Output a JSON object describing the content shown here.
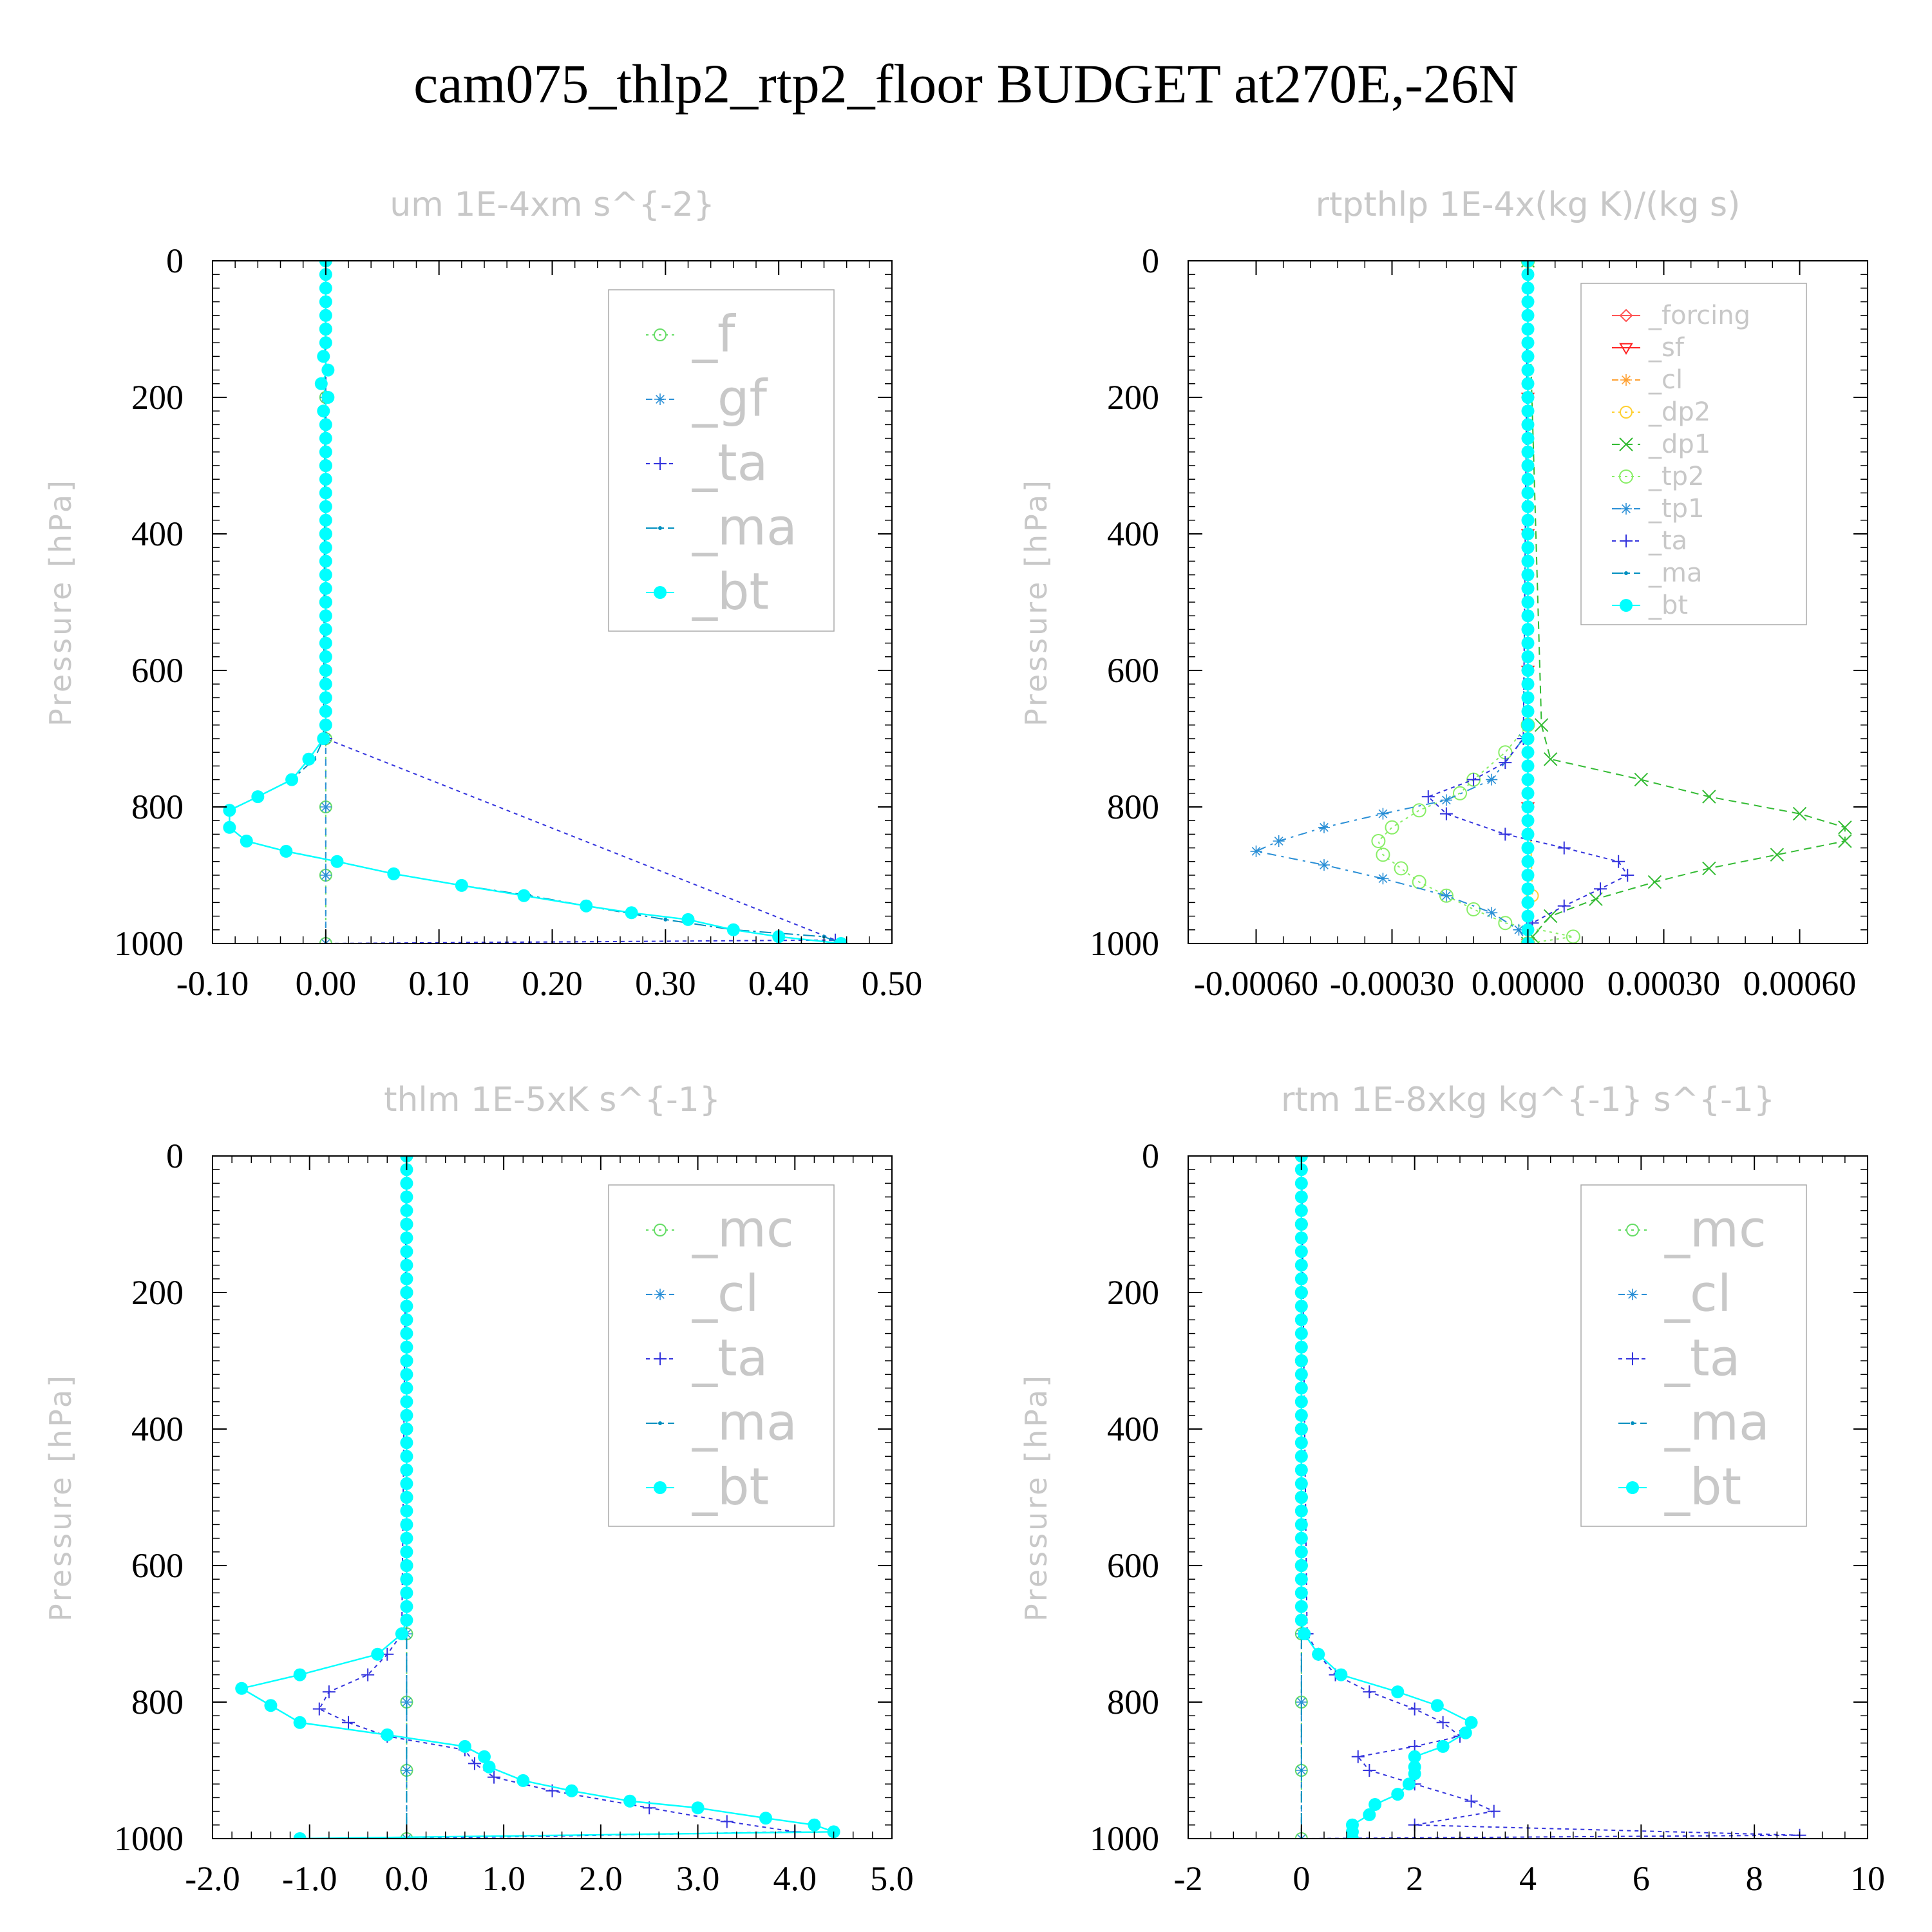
{
  "figure": {
    "title": "cam075_thlp2_rtp2_floor  BUDGET at270E,-26N"
  },
  "colors": {
    "_f": "#66dd66",
    "_gf": "#2a8fd6",
    "_ta": "#3333dd",
    "_ma": "#008fbf",
    "_bt": "#00ffff",
    "_mc": "#66dd66",
    "_cl": "#2a8fd6",
    "_forcing": "#ff5555",
    "_sf": "#ff2222",
    "_cl_r": "#ffa030",
    "_dp2": "#ffd030",
    "_dp1": "#33bb33",
    "_tp2": "#88ee66",
    "_tp1": "#2a8fd6"
  },
  "chart_data": [
    {
      "type": "line",
      "title": "um  1E-4xm s^{-2}",
      "ylabel": "Pressure [hPa]",
      "xlim": [
        -0.1,
        0.5
      ],
      "ylim": [
        1000,
        0
      ],
      "xticks": [
        "-0.10",
        "0.00",
        "0.10",
        "0.20",
        "0.30",
        "0.40",
        "0.50"
      ],
      "yticks": [
        "0",
        "200",
        "400",
        "600",
        "800",
        "1000"
      ],
      "legend_position": "top-right",
      "legend": [
        "_f",
        "_gf",
        "_ta",
        "_ma",
        "_bt"
      ],
      "series": [
        {
          "name": "_f",
          "pressure": [
            0,
            100,
            200,
            300,
            400,
            500,
            600,
            700,
            800,
            900,
            1000
          ],
          "values": [
            0,
            0,
            0,
            0,
            0,
            0,
            0,
            0,
            0,
            0,
            0
          ]
        },
        {
          "name": "_gf",
          "pressure": [
            0,
            100,
            200,
            300,
            400,
            500,
            600,
            700,
            800,
            900,
            1000
          ],
          "values": [
            0,
            0,
            0,
            0,
            0,
            0,
            0,
            0,
            0,
            0,
            0
          ]
        },
        {
          "name": "_ta",
          "pressure": [
            0,
            700,
            995,
            1000
          ],
          "values": [
            0,
            0,
            0.45,
            0
          ]
        },
        {
          "name": "_ma",
          "pressure": [
            0,
            700,
            730,
            760,
            785,
            805,
            830,
            850,
            865,
            880,
            898,
            915,
            930,
            945,
            965,
            980,
            990,
            1000
          ],
          "values": [
            0,
            -0.002,
            -0.01,
            -0.03,
            -0.06,
            -0.085,
            -0.085,
            -0.07,
            -0.035,
            0.01,
            0.06,
            0.12,
            0.18,
            0.23,
            0.3,
            0.36,
            0.44,
            0.455
          ]
        },
        {
          "name": "_bt",
          "pressure": [
            0,
            20,
            40,
            60,
            80,
            100,
            120,
            140,
            160,
            180,
            200,
            220,
            240,
            260,
            280,
            300,
            320,
            340,
            360,
            380,
            400,
            420,
            440,
            460,
            480,
            500,
            520,
            540,
            560,
            580,
            600,
            620,
            640,
            660,
            680,
            700,
            730,
            760,
            785,
            805,
            830,
            850,
            865,
            880,
            898,
            915,
            930,
            945,
            955,
            965,
            980,
            990,
            1000
          ],
          "values": [
            0,
            0,
            0,
            0,
            0,
            0,
            0,
            -0.002,
            0.002,
            -0.004,
            0.002,
            -0.002,
            0,
            0,
            0,
            0,
            0,
            0,
            0,
            0,
            0,
            0,
            0,
            0,
            0,
            0,
            0,
            0,
            0,
            0,
            0,
            0,
            0,
            0,
            0,
            -0.002,
            -0.015,
            -0.03,
            -0.06,
            -0.085,
            -0.085,
            -0.07,
            -0.035,
            0.01,
            0.06,
            0.12,
            0.175,
            0.23,
            0.27,
            0.32,
            0.36,
            0.4,
            0.455
          ]
        }
      ]
    },
    {
      "type": "line",
      "title": "rtpthlp  1E-4x(kg K)/(kg s)",
      "ylabel": "Pressure [hPa]",
      "xlim": [
        -0.00075,
        0.00075
      ],
      "ylim": [
        1000,
        0
      ],
      "xticks": [
        "-0.00060",
        "-0.00030",
        "0.00000",
        "0.00030",
        "0.00060"
      ],
      "yticks": [
        "0",
        "200",
        "400",
        "600",
        "800",
        "1000"
      ],
      "legend_position": "top-right",
      "legend": [
        "_forcing",
        "_sf",
        "_cl",
        "_dp2",
        "_dp1",
        "_tp2",
        "_tp1",
        "_ta",
        "_ma",
        "_bt"
      ],
      "series": [
        {
          "name": "_forcing",
          "pressure": [
            0,
            200,
            400,
            600,
            800,
            1000
          ],
          "values": [
            0,
            0,
            0,
            0,
            0,
            0
          ]
        },
        {
          "name": "_sf",
          "pressure": [
            0,
            200,
            400,
            600,
            800,
            1000
          ],
          "values": [
            0,
            0,
            0,
            0,
            0,
            0
          ]
        },
        {
          "name": "_cl",
          "pressure": [
            0,
            200,
            400,
            600,
            800,
            1000
          ],
          "values": [
            0,
            0,
            0,
            0,
            0,
            0
          ]
        },
        {
          "name": "_dp2",
          "pressure": [
            0,
            700,
            930,
            1000
          ],
          "values": [
            0,
            0,
            1e-05,
            0
          ]
        },
        {
          "name": "_dp1",
          "pressure": [
            0,
            680,
            730,
            760,
            785,
            810,
            830,
            850,
            870,
            890,
            910,
            935,
            960,
            990,
            1000
          ],
          "values": [
            0,
            3e-05,
            5e-05,
            0.00025,
            0.0004,
            0.0006,
            0.0007,
            0.0007,
            0.00055,
            0.0004,
            0.00028,
            0.00015,
            5e-05,
            1e-05,
            0
          ]
        },
        {
          "name": "_tp2",
          "pressure": [
            0,
            680,
            720,
            760,
            780,
            805,
            830,
            850,
            870,
            890,
            910,
            930,
            950,
            970,
            990,
            1000
          ],
          "values": [
            0,
            0,
            -5e-05,
            -0.00012,
            -0.00015,
            -0.00024,
            -0.0003,
            -0.00033,
            -0.00032,
            -0.00028,
            -0.00024,
            -0.00018,
            -0.00012,
            -5e-05,
            0.0001,
            0
          ]
        },
        {
          "name": "_tp1",
          "pressure": [
            0,
            700,
            760,
            790,
            810,
            830,
            850,
            865,
            885,
            905,
            930,
            955,
            980,
            1000
          ],
          "values": [
            0,
            -1e-05,
            -8e-05,
            -0.00018,
            -0.00032,
            -0.00045,
            -0.00055,
            -0.0006,
            -0.00045,
            -0.00032,
            -0.00018,
            -8e-05,
            -2e-05,
            0
          ]
        },
        {
          "name": "_ta",
          "pressure": [
            0,
            700,
            735,
            760,
            785,
            810,
            840,
            860,
            880,
            900,
            920,
            945,
            970,
            1000
          ],
          "values": [
            0,
            -1e-05,
            -5e-05,
            -0.00012,
            -0.00022,
            -0.00018,
            -5e-05,
            8e-05,
            0.0002,
            0.00022,
            0.00016,
            8e-05,
            1e-05,
            0
          ]
        },
        {
          "name": "_ma",
          "pressure": [
            0,
            1000
          ],
          "values": [
            0,
            0
          ]
        },
        {
          "name": "_bt",
          "pressure": [
            0,
            20,
            40,
            60,
            80,
            100,
            120,
            140,
            160,
            180,
            200,
            220,
            240,
            260,
            280,
            300,
            320,
            340,
            360,
            380,
            400,
            420,
            440,
            460,
            480,
            500,
            520,
            540,
            560,
            580,
            600,
            620,
            640,
            660,
            680,
            700,
            720,
            740,
            760,
            780,
            800,
            820,
            840,
            860,
            880,
            900,
            920,
            940,
            960,
            980,
            1000
          ],
          "values": [
            0,
            0,
            0,
            0,
            0,
            0,
            0,
            0,
            0,
            0,
            0,
            0,
            0,
            0,
            0,
            0,
            0,
            0,
            0,
            0,
            0,
            0,
            0,
            0,
            0,
            0,
            0,
            0,
            0,
            0,
            0,
            0,
            0,
            0,
            0,
            0,
            0,
            0,
            0,
            0,
            0,
            0,
            0,
            0,
            0,
            0,
            0,
            0,
            0,
            0,
            0
          ]
        }
      ]
    },
    {
      "type": "line",
      "title": "thlm  1E-5xK s^{-1}",
      "ylabel": "Pressure [hPa]",
      "xlim": [
        -2.0,
        5.0
      ],
      "ylim": [
        1000,
        0
      ],
      "xticks": [
        "-2.0",
        "-1.0",
        "0.0",
        "1.0",
        "2.0",
        "3.0",
        "4.0",
        "5.0"
      ],
      "yticks": [
        "0",
        "200",
        "400",
        "600",
        "800",
        "1000"
      ],
      "legend_position": "top-right",
      "legend": [
        "_mc",
        "_cl",
        "_ta",
        "_ma",
        "_bt"
      ],
      "series": [
        {
          "name": "_mc",
          "pressure": [
            0,
            100,
            200,
            300,
            400,
            500,
            600,
            700,
            800,
            900,
            1000
          ],
          "values": [
            0,
            0,
            0,
            0,
            0,
            0,
            0,
            0,
            0,
            0,
            0
          ]
        },
        {
          "name": "_cl",
          "pressure": [
            0,
            100,
            200,
            300,
            400,
            500,
            600,
            700,
            800,
            900,
            1000
          ],
          "values": [
            0,
            0,
            0,
            0,
            0,
            0,
            0,
            0,
            0,
            0,
            0
          ]
        },
        {
          "name": "_ta",
          "pressure": [
            0,
            700,
            730,
            760,
            785,
            810,
            830,
            850,
            870,
            890,
            910,
            930,
            955,
            975,
            990,
            1000
          ],
          "values": [
            0,
            -0.05,
            -0.2,
            -0.4,
            -0.8,
            -0.9,
            -0.6,
            -0.2,
            0.6,
            0.7,
            0.9,
            1.5,
            2.5,
            3.3,
            4.0,
            0
          ]
        },
        {
          "name": "_ma",
          "pressure": [
            0,
            1000
          ],
          "values": [
            0,
            0
          ]
        },
        {
          "name": "_bt",
          "pressure": [
            0,
            20,
            40,
            60,
            80,
            100,
            120,
            140,
            160,
            180,
            200,
            220,
            240,
            260,
            280,
            300,
            320,
            340,
            360,
            380,
            400,
            420,
            440,
            460,
            480,
            500,
            520,
            540,
            560,
            580,
            600,
            620,
            640,
            660,
            680,
            700,
            730,
            760,
            780,
            805,
            830,
            848,
            865,
            880,
            895,
            915,
            930,
            945,
            955,
            970,
            980,
            990,
            1000
          ],
          "values": [
            0,
            0,
            0,
            0,
            0,
            0,
            0,
            0,
            0,
            0,
            0,
            0,
            0,
            0,
            0,
            0,
            0,
            0,
            0,
            0,
            0,
            0,
            0,
            0,
            0,
            0,
            0,
            0,
            0,
            0,
            0,
            0,
            0,
            0,
            0,
            -0.05,
            -0.3,
            -1.1,
            -1.7,
            -1.4,
            -1.1,
            -0.2,
            0.6,
            0.8,
            0.85,
            1.2,
            1.7,
            2.3,
            3.0,
            3.7,
            4.2,
            4.4,
            -1.1
          ]
        }
      ]
    },
    {
      "type": "line",
      "title": "rtm  1E-8xkg kg^{-1} s^{-1}",
      "ylabel": "Pressure [hPa]",
      "xlim": [
        -2,
        10
      ],
      "ylim": [
        1000,
        0
      ],
      "xticks": [
        "-2",
        "0",
        "2",
        "4",
        "6",
        "8",
        "10"
      ],
      "yticks": [
        "0",
        "200",
        "400",
        "600",
        "800",
        "1000"
      ],
      "legend_position": "top-right",
      "legend": [
        "_mc",
        "_cl",
        "_ta",
        "_ma",
        "_bt"
      ],
      "series": [
        {
          "name": "_mc",
          "pressure": [
            0,
            100,
            200,
            300,
            400,
            500,
            600,
            700,
            800,
            900,
            1000
          ],
          "values": [
            0,
            0,
            0,
            0,
            0,
            0,
            0,
            0,
            0,
            0,
            0
          ]
        },
        {
          "name": "_cl",
          "pressure": [
            0,
            100,
            200,
            300,
            400,
            500,
            600,
            700,
            800,
            900,
            1000
          ],
          "values": [
            0,
            0,
            0,
            0,
            0,
            0,
            0,
            0,
            0,
            0,
            0
          ]
        },
        {
          "name": "_ta",
          "pressure": [
            0,
            700,
            730,
            760,
            785,
            810,
            830,
            850,
            865,
            880,
            900,
            920,
            945,
            960,
            980,
            995,
            1000
          ],
          "values": [
            0,
            0.1,
            0.3,
            0.6,
            1.2,
            2.0,
            2.5,
            2.8,
            2.0,
            1.0,
            1.2,
            2.0,
            3.0,
            3.4,
            2.0,
            8.8,
            0
          ]
        },
        {
          "name": "_ma",
          "pressure": [
            0,
            1000
          ],
          "values": [
            0,
            0
          ]
        },
        {
          "name": "_bt",
          "pressure": [
            0,
            20,
            40,
            60,
            80,
            100,
            120,
            140,
            160,
            180,
            200,
            220,
            240,
            260,
            280,
            300,
            320,
            340,
            360,
            380,
            400,
            420,
            440,
            460,
            480,
            500,
            520,
            540,
            560,
            580,
            600,
            620,
            640,
            660,
            680,
            700,
            730,
            760,
            785,
            805,
            830,
            845,
            865,
            880,
            895,
            905,
            920,
            935,
            950,
            965,
            980,
            990,
            1000
          ],
          "values": [
            0,
            0,
            0,
            0,
            0,
            0,
            0,
            0,
            0,
            0,
            0,
            0,
            0,
            0,
            0,
            0,
            0,
            0,
            0,
            0,
            0,
            0,
            0,
            0,
            0,
            0,
            0,
            0,
            0,
            0,
            0,
            0,
            0,
            0,
            0,
            0.05,
            0.3,
            0.7,
            1.7,
            2.4,
            3.0,
            2.9,
            2.5,
            2.0,
            2.0,
            2.0,
            1.9,
            1.7,
            1.3,
            1.2,
            0.9,
            0.9,
            0.9
          ]
        }
      ]
    }
  ]
}
